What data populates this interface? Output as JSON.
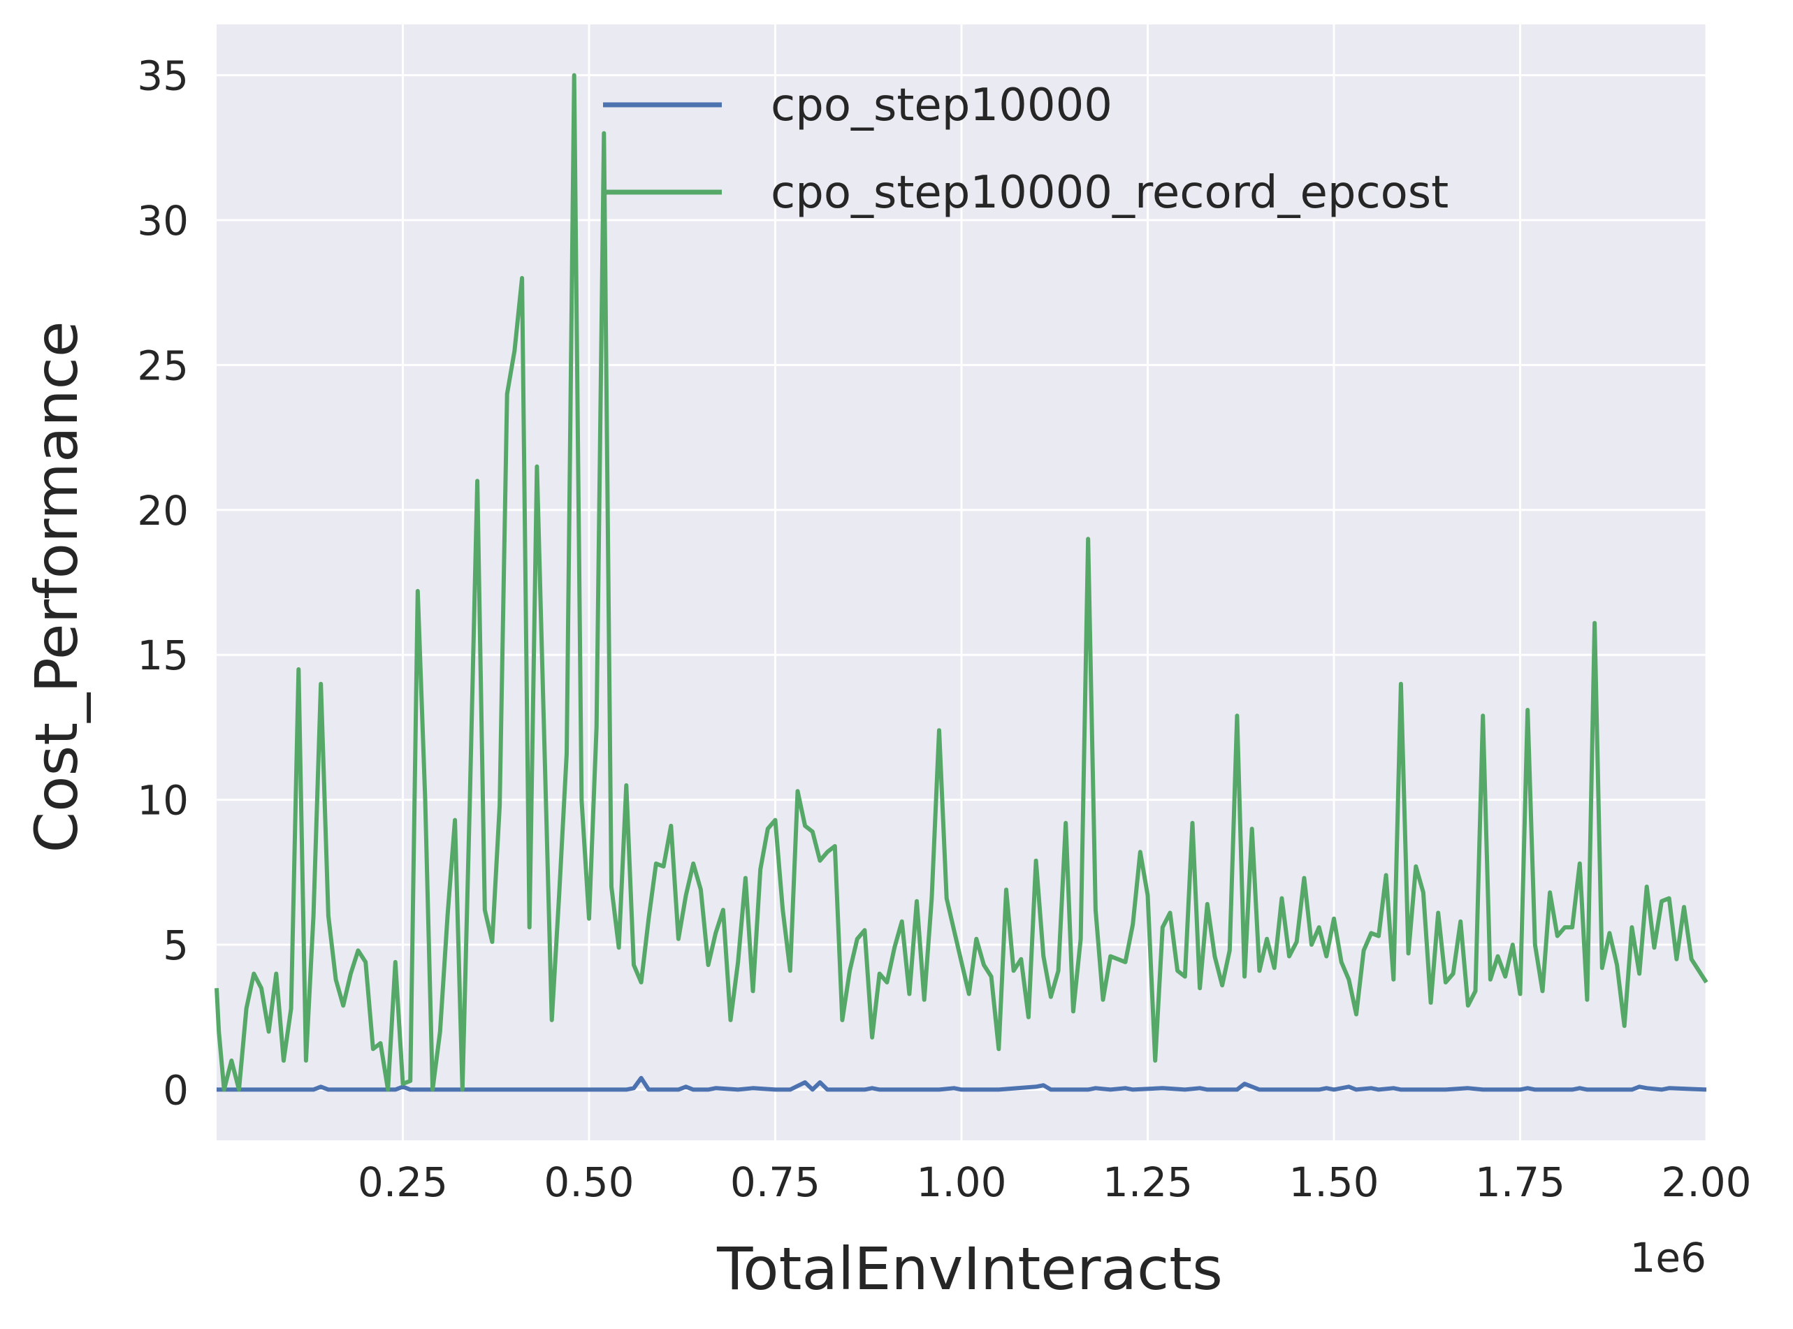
{
  "chart_data": {
    "type": "line",
    "xlabel": "TotalEnvInteracts",
    "ylabel": "Cost_Performance",
    "x_offset_label": "1e6",
    "xlim": [
      0.0,
      2.0
    ],
    "ylim": [
      -1.75,
      36.75
    ],
    "x_ticks": [
      {
        "value": 0.25,
        "label": "0.25"
      },
      {
        "value": 0.5,
        "label": "0.50"
      },
      {
        "value": 0.75,
        "label": "0.75"
      },
      {
        "value": 1.0,
        "label": "1.00"
      },
      {
        "value": 1.25,
        "label": "1.25"
      },
      {
        "value": 1.5,
        "label": "1.50"
      },
      {
        "value": 1.75,
        "label": "1.75"
      },
      {
        "value": 2.0,
        "label": "2.00"
      }
    ],
    "y_ticks": [
      {
        "value": 0,
        "label": "0"
      },
      {
        "value": 5,
        "label": "5"
      },
      {
        "value": 10,
        "label": "10"
      },
      {
        "value": 15,
        "label": "15"
      },
      {
        "value": 20,
        "label": "20"
      },
      {
        "value": 25,
        "label": "25"
      },
      {
        "value": 30,
        "label": "30"
      },
      {
        "value": 35,
        "label": "35"
      }
    ],
    "grid": true,
    "background": "#eaeaf2",
    "legend_position": "top-center",
    "series": [
      {
        "name": "cpo_step10000",
        "color": "#4c72b0",
        "points": [
          [
            0.0,
            0
          ],
          [
            0.05,
            0
          ],
          [
            0.1,
            0
          ],
          [
            0.13,
            0
          ],
          [
            0.14,
            0.1
          ],
          [
            0.15,
            0
          ],
          [
            0.2,
            0
          ],
          [
            0.24,
            0
          ],
          [
            0.25,
            0.1
          ],
          [
            0.26,
            0
          ],
          [
            0.3,
            0
          ],
          [
            0.35,
            0
          ],
          [
            0.4,
            0
          ],
          [
            0.45,
            0
          ],
          [
            0.5,
            0
          ],
          [
            0.55,
            0
          ],
          [
            0.56,
            0.05
          ],
          [
            0.57,
            0.4
          ],
          [
            0.58,
            0
          ],
          [
            0.62,
            0
          ],
          [
            0.63,
            0.1
          ],
          [
            0.64,
            0
          ],
          [
            0.66,
            0
          ],
          [
            0.67,
            0.05
          ],
          [
            0.7,
            0
          ],
          [
            0.72,
            0.05
          ],
          [
            0.75,
            0
          ],
          [
            0.77,
            0
          ],
          [
            0.79,
            0.25
          ],
          [
            0.8,
            0
          ],
          [
            0.81,
            0.25
          ],
          [
            0.82,
            0
          ],
          [
            0.87,
            0
          ],
          [
            0.88,
            0.05
          ],
          [
            0.89,
            0
          ],
          [
            0.95,
            0
          ],
          [
            0.97,
            0
          ],
          [
            0.99,
            0.05
          ],
          [
            1.0,
            0
          ],
          [
            1.05,
            0
          ],
          [
            1.1,
            0.1
          ],
          [
            1.11,
            0.15
          ],
          [
            1.12,
            0
          ],
          [
            1.17,
            0
          ],
          [
            1.18,
            0.05
          ],
          [
            1.2,
            0
          ],
          [
            1.22,
            0.05
          ],
          [
            1.23,
            0
          ],
          [
            1.27,
            0.05
          ],
          [
            1.3,
            0
          ],
          [
            1.32,
            0.05
          ],
          [
            1.33,
            0
          ],
          [
            1.37,
            0
          ],
          [
            1.38,
            0.2
          ],
          [
            1.4,
            0
          ],
          [
            1.45,
            0
          ],
          [
            1.48,
            0
          ],
          [
            1.49,
            0.05
          ],
          [
            1.5,
            0
          ],
          [
            1.52,
            0.1
          ],
          [
            1.53,
            0
          ],
          [
            1.55,
            0.05
          ],
          [
            1.56,
            0
          ],
          [
            1.58,
            0.05
          ],
          [
            1.59,
            0
          ],
          [
            1.65,
            0
          ],
          [
            1.68,
            0.05
          ],
          [
            1.7,
            0
          ],
          [
            1.75,
            0
          ],
          [
            1.76,
            0.05
          ],
          [
            1.77,
            0
          ],
          [
            1.82,
            0
          ],
          [
            1.83,
            0.05
          ],
          [
            1.84,
            0
          ],
          [
            1.9,
            0
          ],
          [
            1.91,
            0.1
          ],
          [
            1.92,
            0.05
          ],
          [
            1.94,
            0
          ],
          [
            1.95,
            0.05
          ],
          [
            2.0,
            0
          ]
        ]
      },
      {
        "name": "cpo_step10000_record_epcost",
        "color": "#55a868",
        "points": [
          [
            0.0,
            3.5
          ],
          [
            0.003,
            2.0
          ],
          [
            0.01,
            0
          ],
          [
            0.02,
            1.0
          ],
          [
            0.03,
            0
          ],
          [
            0.04,
            2.8
          ],
          [
            0.05,
            4.0
          ],
          [
            0.06,
            3.5
          ],
          [
            0.07,
            2.0
          ],
          [
            0.08,
            4.0
          ],
          [
            0.09,
            1.0
          ],
          [
            0.1,
            2.8
          ],
          [
            0.11,
            14.5
          ],
          [
            0.12,
            1.0
          ],
          [
            0.13,
            6.0
          ],
          [
            0.14,
            14.0
          ],
          [
            0.15,
            6.0
          ],
          [
            0.16,
            3.8
          ],
          [
            0.17,
            2.9
          ],
          [
            0.18,
            4.0
          ],
          [
            0.19,
            4.8
          ],
          [
            0.2,
            4.4
          ],
          [
            0.21,
            1.4
          ],
          [
            0.22,
            1.6
          ],
          [
            0.23,
            0
          ],
          [
            0.24,
            4.4
          ],
          [
            0.25,
            0.2
          ],
          [
            0.26,
            0.3
          ],
          [
            0.27,
            17.2
          ],
          [
            0.28,
            10.0
          ],
          [
            0.29,
            0
          ],
          [
            0.3,
            2.0
          ],
          [
            0.31,
            6.0
          ],
          [
            0.32,
            9.3
          ],
          [
            0.33,
            0
          ],
          [
            0.34,
            10.0
          ],
          [
            0.35,
            21.0
          ],
          [
            0.36,
            6.2
          ],
          [
            0.37,
            5.1
          ],
          [
            0.38,
            9.8
          ],
          [
            0.39,
            24.0
          ],
          [
            0.4,
            25.5
          ],
          [
            0.41,
            28.0
          ],
          [
            0.42,
            5.6
          ],
          [
            0.43,
            21.5
          ],
          [
            0.44,
            12.0
          ],
          [
            0.45,
            2.4
          ],
          [
            0.46,
            6.8
          ],
          [
            0.47,
            11.6
          ],
          [
            0.48,
            35.0
          ],
          [
            0.49,
            10.0
          ],
          [
            0.5,
            5.9
          ],
          [
            0.51,
            12.5
          ],
          [
            0.52,
            33.0
          ],
          [
            0.53,
            7.0
          ],
          [
            0.54,
            4.9
          ],
          [
            0.55,
            10.5
          ],
          [
            0.56,
            4.3
          ],
          [
            0.57,
            3.7
          ],
          [
            0.58,
            5.9
          ],
          [
            0.59,
            7.8
          ],
          [
            0.6,
            7.7
          ],
          [
            0.61,
            9.1
          ],
          [
            0.62,
            5.2
          ],
          [
            0.63,
            6.7
          ],
          [
            0.64,
            7.8
          ],
          [
            0.65,
            6.9
          ],
          [
            0.66,
            4.3
          ],
          [
            0.67,
            5.4
          ],
          [
            0.68,
            6.2
          ],
          [
            0.69,
            2.4
          ],
          [
            0.7,
            4.4
          ],
          [
            0.71,
            7.3
          ],
          [
            0.72,
            3.4
          ],
          [
            0.73,
            7.6
          ],
          [
            0.74,
            9.0
          ],
          [
            0.75,
            9.3
          ],
          [
            0.76,
            6.2
          ],
          [
            0.77,
            4.1
          ],
          [
            0.78,
            10.3
          ],
          [
            0.79,
            9.1
          ],
          [
            0.8,
            8.9
          ],
          [
            0.81,
            7.9
          ],
          [
            0.82,
            8.2
          ],
          [
            0.83,
            8.4
          ],
          [
            0.84,
            2.4
          ],
          [
            0.85,
            4.1
          ],
          [
            0.86,
            5.2
          ],
          [
            0.87,
            5.5
          ],
          [
            0.88,
            1.8
          ],
          [
            0.89,
            4.0
          ],
          [
            0.9,
            3.7
          ],
          [
            0.91,
            4.9
          ],
          [
            0.92,
            5.8
          ],
          [
            0.93,
            3.3
          ],
          [
            0.94,
            6.5
          ],
          [
            0.95,
            3.1
          ],
          [
            0.96,
            6.6
          ],
          [
            0.97,
            12.4
          ],
          [
            0.98,
            6.6
          ],
          [
            0.99,
            5.5
          ],
          [
            1.0,
            4.4
          ],
          [
            1.01,
            3.3
          ],
          [
            1.02,
            5.2
          ],
          [
            1.03,
            4.3
          ],
          [
            1.04,
            3.9
          ],
          [
            1.05,
            1.4
          ],
          [
            1.06,
            6.9
          ],
          [
            1.07,
            4.1
          ],
          [
            1.08,
            4.5
          ],
          [
            1.09,
            2.5
          ],
          [
            1.1,
            7.9
          ],
          [
            1.11,
            4.6
          ],
          [
            1.12,
            3.2
          ],
          [
            1.13,
            4.1
          ],
          [
            1.14,
            9.2
          ],
          [
            1.15,
            2.7
          ],
          [
            1.16,
            5.2
          ],
          [
            1.17,
            19.0
          ],
          [
            1.18,
            6.2
          ],
          [
            1.19,
            3.1
          ],
          [
            1.2,
            4.6
          ],
          [
            1.21,
            4.5
          ],
          [
            1.22,
            4.4
          ],
          [
            1.23,
            5.7
          ],
          [
            1.24,
            8.2
          ],
          [
            1.25,
            6.7
          ],
          [
            1.26,
            1.0
          ],
          [
            1.27,
            5.6
          ],
          [
            1.28,
            6.1
          ],
          [
            1.29,
            4.1
          ],
          [
            1.3,
            3.9
          ],
          [
            1.31,
            9.2
          ],
          [
            1.32,
            3.5
          ],
          [
            1.33,
            6.4
          ],
          [
            1.34,
            4.6
          ],
          [
            1.35,
            3.6
          ],
          [
            1.36,
            4.8
          ],
          [
            1.37,
            12.9
          ],
          [
            1.38,
            3.9
          ],
          [
            1.39,
            9.0
          ],
          [
            1.4,
            4.1
          ],
          [
            1.41,
            5.2
          ],
          [
            1.42,
            4.2
          ],
          [
            1.43,
            6.6
          ],
          [
            1.44,
            4.6
          ],
          [
            1.45,
            5.1
          ],
          [
            1.46,
            7.3
          ],
          [
            1.47,
            5.0
          ],
          [
            1.48,
            5.6
          ],
          [
            1.49,
            4.6
          ],
          [
            1.5,
            5.9
          ],
          [
            1.51,
            4.4
          ],
          [
            1.52,
            3.8
          ],
          [
            1.53,
            2.6
          ],
          [
            1.54,
            4.8
          ],
          [
            1.55,
            5.4
          ],
          [
            1.56,
            5.3
          ],
          [
            1.57,
            7.4
          ],
          [
            1.58,
            3.8
          ],
          [
            1.59,
            14.0
          ],
          [
            1.6,
            4.7
          ],
          [
            1.61,
            7.7
          ],
          [
            1.62,
            6.8
          ],
          [
            1.63,
            3.0
          ],
          [
            1.64,
            6.1
          ],
          [
            1.65,
            3.7
          ],
          [
            1.66,
            4.0
          ],
          [
            1.67,
            5.8
          ],
          [
            1.68,
            2.9
          ],
          [
            1.69,
            3.4
          ],
          [
            1.7,
            12.9
          ],
          [
            1.71,
            3.8
          ],
          [
            1.72,
            4.6
          ],
          [
            1.73,
            3.9
          ],
          [
            1.74,
            5.0
          ],
          [
            1.75,
            3.3
          ],
          [
            1.76,
            13.1
          ],
          [
            1.77,
            5.0
          ],
          [
            1.78,
            3.4
          ],
          [
            1.79,
            6.8
          ],
          [
            1.8,
            5.3
          ],
          [
            1.81,
            5.6
          ],
          [
            1.82,
            5.6
          ],
          [
            1.83,
            7.8
          ],
          [
            1.84,
            3.1
          ],
          [
            1.85,
            16.1
          ],
          [
            1.86,
            4.2
          ],
          [
            1.87,
            5.4
          ],
          [
            1.88,
            4.3
          ],
          [
            1.89,
            2.2
          ],
          [
            1.9,
            5.6
          ],
          [
            1.91,
            4.0
          ],
          [
            1.92,
            7.0
          ],
          [
            1.93,
            4.9
          ],
          [
            1.94,
            6.5
          ],
          [
            1.95,
            6.6
          ],
          [
            1.96,
            4.5
          ],
          [
            1.97,
            6.3
          ],
          [
            1.98,
            4.5
          ],
          [
            1.99,
            4.1
          ],
          [
            2.0,
            3.7
          ]
        ]
      }
    ]
  }
}
